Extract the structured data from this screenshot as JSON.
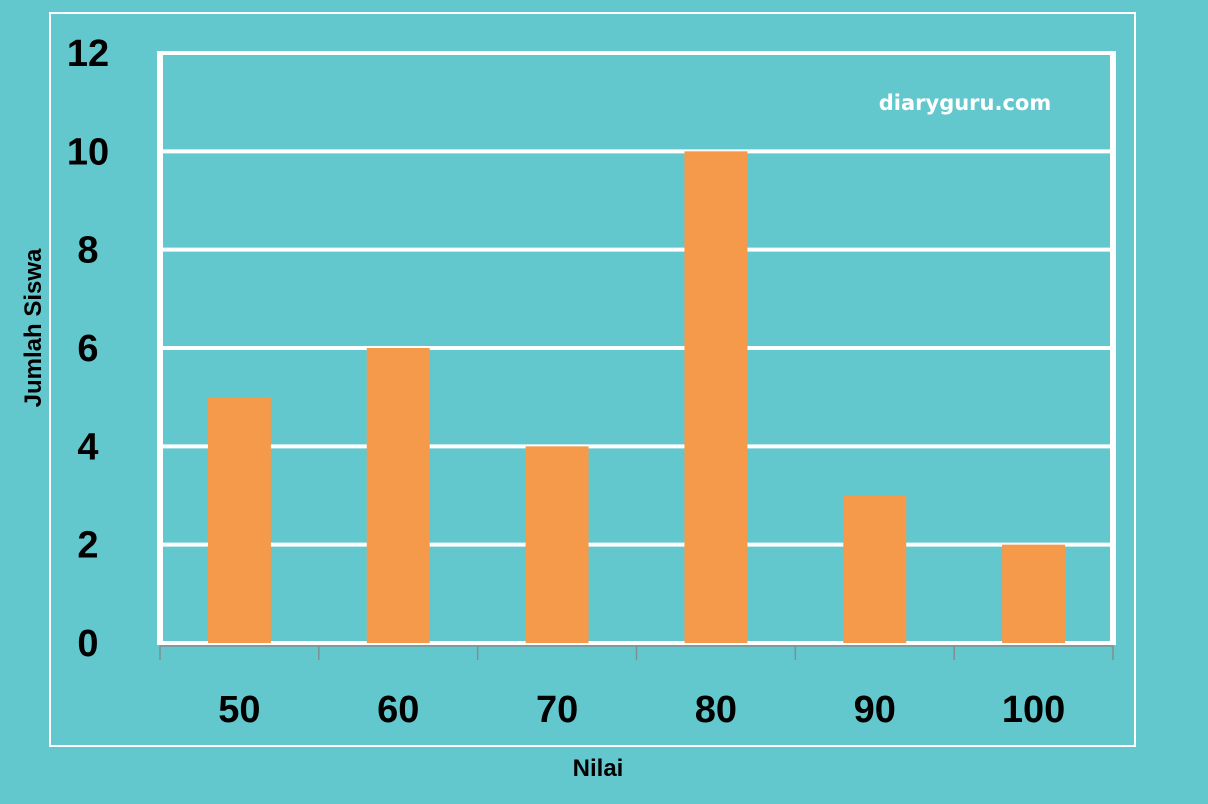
{
  "chart_data": {
    "type": "bar",
    "categories": [
      "50",
      "60",
      "70",
      "80",
      "90",
      "100"
    ],
    "values": [
      5,
      6,
      4,
      10,
      3,
      2
    ],
    "title": "",
    "xlabel": "Nilai",
    "ylabel": "Jumlah Siswa",
    "ylim": [
      0,
      12
    ],
    "yticks": [
      "0",
      "2",
      "4",
      "6",
      "8",
      "10",
      "12"
    ],
    "grid": true,
    "legend": "none"
  },
  "watermark": "diaryguru.com",
  "colors": {
    "background": "#63c8cd",
    "bar": "#f5994b",
    "grid": "#ffffff",
    "text": "#000000"
  }
}
